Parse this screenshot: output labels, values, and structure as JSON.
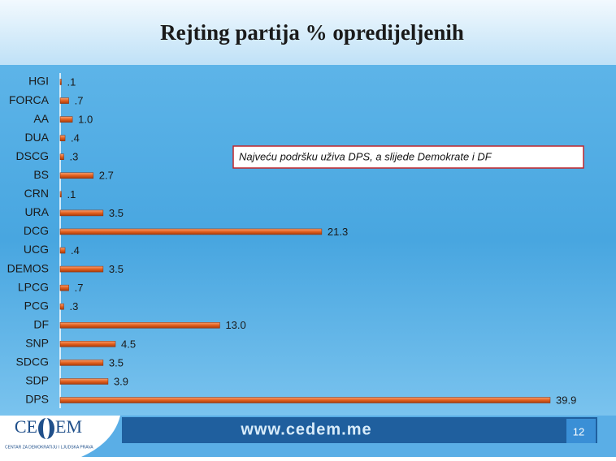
{
  "chart_data": {
    "type": "barh",
    "title": "Rejting partija % opredijeljenih",
    "categories": [
      "HGI",
      "FORCA",
      "AA",
      "DUA",
      "DSCG",
      "BS",
      "CRN",
      "URA",
      "DCG",
      "UCG",
      "DEMOS",
      "LPCG",
      "PCG",
      "DF",
      "SNP",
      "SDCG",
      "SDP",
      "DPS"
    ],
    "values": [
      0.1,
      0.7,
      1.0,
      0.4,
      0.3,
      2.7,
      0.1,
      3.5,
      21.3,
      0.4,
      3.5,
      0.7,
      0.3,
      13.0,
      4.5,
      3.5,
      3.9,
      39.9
    ],
    "value_labels": [
      ".1",
      ".7",
      "1.0",
      ".4",
      ".3",
      "2.7",
      ".1",
      "3.5",
      "21.3",
      ".4",
      "3.5",
      ".7",
      ".3",
      "13.0",
      "4.5",
      "3.5",
      "3.9",
      "39.9"
    ],
    "color": "#e2601e",
    "annotation": "Najveću podršku uživa DPS, a slijede Demokrate i DF"
  },
  "footer": {
    "url": "www.cedem.me",
    "page": "12",
    "logo_left": "CE",
    "logo_right": "EM",
    "logo_caption": "CENTAR ZA DEMOKRATIJU I LJUDSKA PRAVA"
  }
}
